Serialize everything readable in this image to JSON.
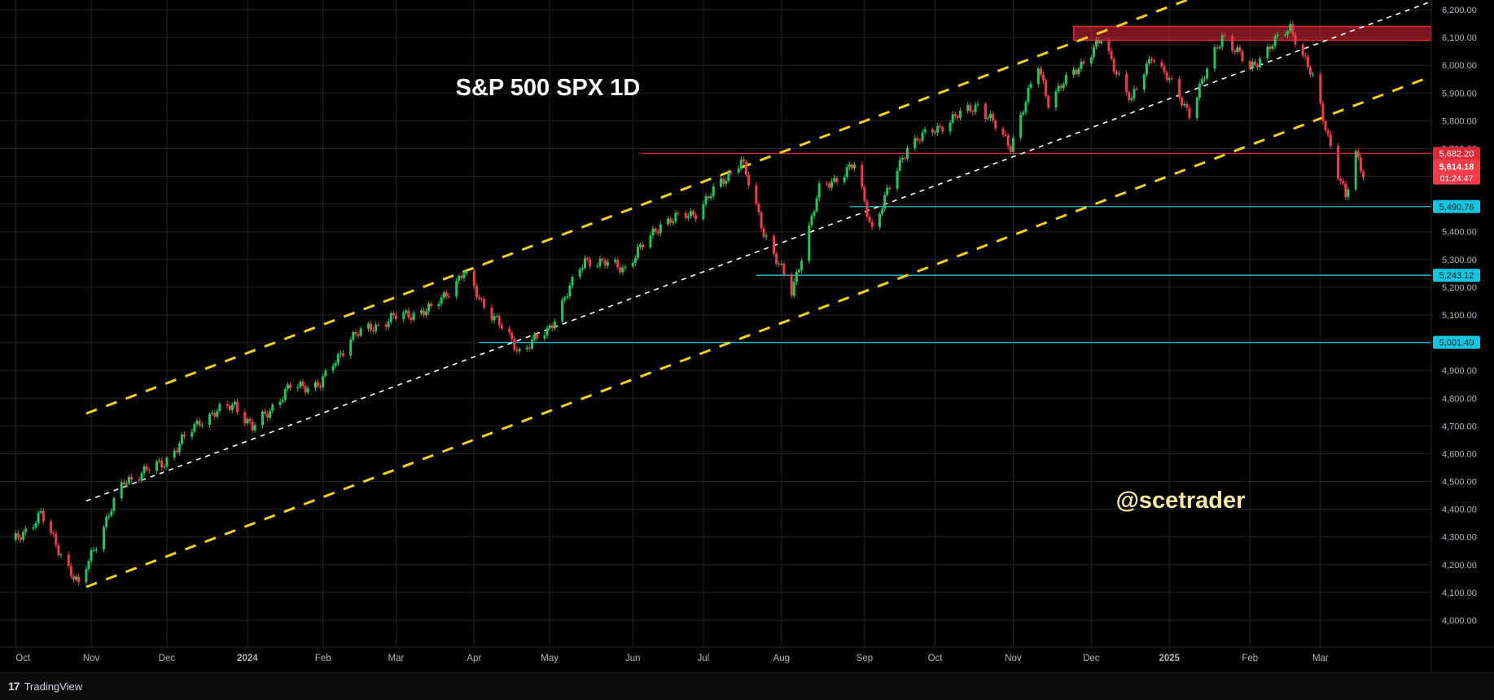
{
  "title": "S&P 500 SPX 1D",
  "watermark": "@scetrader",
  "branding": {
    "mark": "17",
    "name": "TradingView"
  },
  "colors": {
    "background": "#000000",
    "grid": "#262626",
    "up": "#22c55e",
    "down": "#ef3b4a",
    "channel": "#f2d024",
    "midline": "#ffffff",
    "resistance": "#e0283b",
    "support": "#17c4de",
    "title": "#ffffff",
    "watermark": "#ffe9a8"
  },
  "chart_data": {
    "type": "candlestick",
    "instrument": "SPX",
    "interval": "1D",
    "ylim": [
      3850,
      6230
    ],
    "y_ticks": [
      4000,
      4100,
      4200,
      4300,
      4400,
      4500,
      4600,
      4700,
      4800,
      4900,
      5000,
      5100,
      5200,
      5300,
      5400,
      5500,
      5600,
      5700,
      5800,
      5900,
      6000,
      6100,
      6200
    ],
    "y_tick_labels": [
      "4,000.00",
      "4,100.00",
      "4,200.00",
      "4,300.00",
      "4,400.00",
      "4,500.00",
      "4,600.00",
      "4,700.00",
      "4,800.00",
      "4,900.00",
      "5,000.00",
      "5,100.00",
      "5,200.00",
      "5,300.00",
      "5,400.00",
      "5,500.00",
      "5,600.00",
      "5,700.00",
      "5,800.00",
      "5,900.00",
      "6,000.00",
      "6,100.00",
      "6,200.00"
    ],
    "x_ticks": [
      {
        "label": "Oct",
        "date": "2023-10-02",
        "bold": false
      },
      {
        "label": "Nov",
        "date": "2023-11-01",
        "bold": false
      },
      {
        "label": "Dec",
        "date": "2023-12-01",
        "bold": false
      },
      {
        "label": "2024",
        "date": "2024-01-02",
        "bold": true
      },
      {
        "label": "Feb",
        "date": "2024-02-01",
        "bold": false
      },
      {
        "label": "Mar",
        "date": "2024-03-01",
        "bold": false
      },
      {
        "label": "Apr",
        "date": "2024-04-01",
        "bold": false
      },
      {
        "label": "May",
        "date": "2024-05-01",
        "bold": false
      },
      {
        "label": "Jun",
        "date": "2024-06-03",
        "bold": false
      },
      {
        "label": "Jul",
        "date": "2024-07-01",
        "bold": false
      },
      {
        "label": "Aug",
        "date": "2024-08-01",
        "bold": false
      },
      {
        "label": "Sep",
        "date": "2024-09-03",
        "bold": false
      },
      {
        "label": "Oct",
        "date": "2024-10-01",
        "bold": false
      },
      {
        "label": "Nov",
        "date": "2024-11-01",
        "bold": false
      },
      {
        "label": "Dec",
        "date": "2024-12-02",
        "bold": false
      },
      {
        "label": "2025",
        "date": "2025-01-02",
        "bold": true
      },
      {
        "label": "Feb",
        "date": "2025-02-03",
        "bold": false
      },
      {
        "label": "Mar",
        "date": "2025-03-03",
        "bold": false
      }
    ],
    "x_range": [
      "2023-09-29",
      "2025-04-16"
    ],
    "price_path": [
      [
        "2023-10-02",
        4290
      ],
      [
        "2023-10-12",
        4380
      ],
      [
        "2023-10-20",
        4240
      ],
      [
        "2023-10-27",
        4120
      ],
      [
        "2023-11-01",
        4240
      ],
      [
        "2023-11-14",
        4500
      ],
      [
        "2023-11-30",
        4570
      ],
      [
        "2023-12-14",
        4720
      ],
      [
        "2023-12-28",
        4780
      ],
      [
        "2024-01-04",
        4690
      ],
      [
        "2024-01-19",
        4840
      ],
      [
        "2024-01-31",
        4850
      ],
      [
        "2024-02-12",
        5020
      ],
      [
        "2024-02-29",
        5090
      ],
      [
        "2024-03-15",
        5120
      ],
      [
        "2024-03-28",
        5250
      ],
      [
        "2024-04-04",
        5150
      ],
      [
        "2024-04-19",
        4970
      ],
      [
        "2024-04-30",
        5040
      ],
      [
        "2024-05-15",
        5300
      ],
      [
        "2024-05-31",
        5270
      ],
      [
        "2024-06-14",
        5430
      ],
      [
        "2024-06-28",
        5470
      ],
      [
        "2024-07-16",
        5660
      ],
      [
        "2024-07-25",
        5400
      ],
      [
        "2024-08-05",
        5180
      ],
      [
        "2024-08-16",
        5550
      ],
      [
        "2024-08-30",
        5640
      ],
      [
        "2024-09-06",
        5410
      ],
      [
        "2024-09-20",
        5710
      ],
      [
        "2024-10-18",
        5860
      ],
      [
        "2024-10-31",
        5710
      ],
      [
        "2024-11-11",
        6000
      ],
      [
        "2024-11-15",
        5870
      ],
      [
        "2024-12-06",
        6090
      ],
      [
        "2024-12-18",
        5870
      ],
      [
        "2024-12-26",
        6040
      ],
      [
        "2025-01-10",
        5830
      ],
      [
        "2025-01-23",
        6110
      ],
      [
        "2025-02-03",
        5990
      ],
      [
        "2025-02-19",
        6140
      ],
      [
        "2025-02-28",
        5950
      ],
      [
        "2025-03-10",
        5610
      ],
      [
        "2025-03-13",
        5520
      ],
      [
        "2025-03-17",
        5680
      ],
      [
        "2025-03-20",
        5614
      ]
    ],
    "levels": [
      {
        "label": "5,682.20",
        "price": 5682.2,
        "color": "#e0283b",
        "from": "2024-06-06"
      },
      {
        "label": "5,490.76",
        "price": 5490.76,
        "color": "#17c4de",
        "from": "2024-08-28"
      },
      {
        "label": "5,243.12",
        "price": 5243.12,
        "color": "#17c4de",
        "from": "2024-07-22"
      },
      {
        "label": "5,001.40",
        "price": 5001.4,
        "color": "#17c4de",
        "from": "2024-04-03"
      }
    ],
    "current_price": {
      "label": "5,614.18",
      "countdown": "01:24:47",
      "price": 5614.18,
      "color": "#ef3b4a"
    },
    "resistance_zone": {
      "from": "2024-11-25",
      "low": 6090,
      "high": 6140,
      "color": "#e0283b"
    },
    "channel": {
      "upper": [
        [
          "2023-10-30",
          4745
        ],
        [
          "2025-01-28",
          6300
        ]
      ],
      "middle": [
        [
          "2023-10-30",
          4430
        ],
        [
          "2025-04-16",
          6230
        ]
      ],
      "lower": [
        [
          "2023-10-30",
          4120
        ],
        [
          "2025-04-16",
          5960
        ]
      ]
    }
  }
}
